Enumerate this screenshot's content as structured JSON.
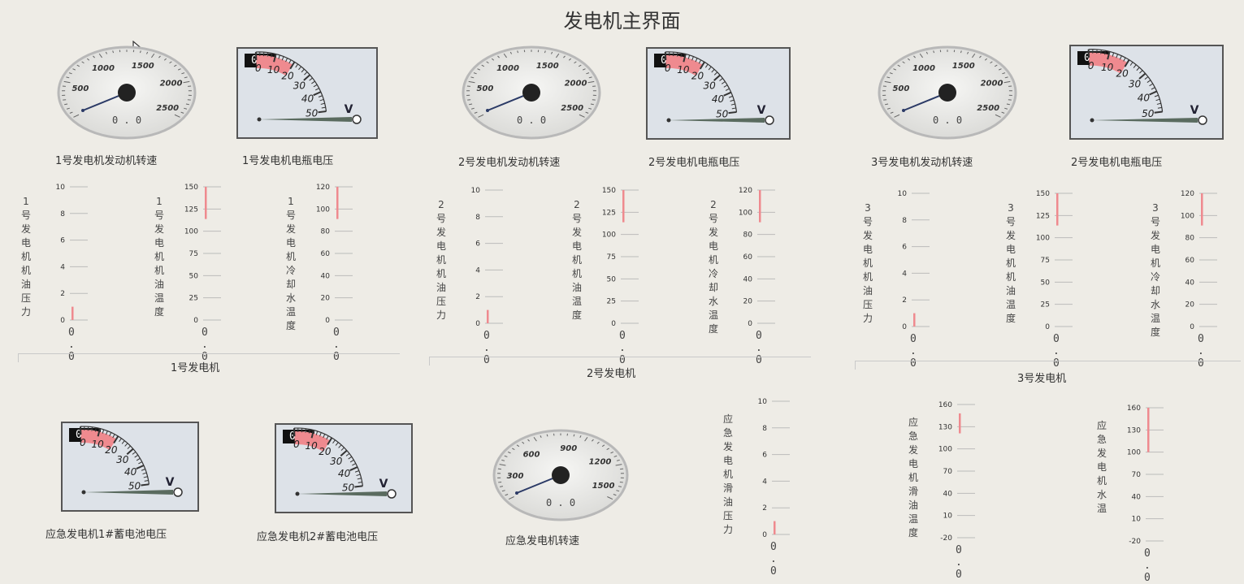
{
  "title": "发电机主界面",
  "rpm_gauges": [
    {
      "label": "1号发电机发动机转速",
      "value": "0.0",
      "ticks": [
        "500",
        "1000",
        "1500",
        "2000",
        "2500"
      ]
    },
    {
      "label": "2号发电机发动机转速",
      "value": "0.0",
      "ticks": [
        "500",
        "1000",
        "1500",
        "2000",
        "2500"
      ]
    },
    {
      "label": "3号发电机发动机转速",
      "value": "0.0",
      "ticks": [
        "500",
        "1000",
        "1500",
        "2000",
        "2500"
      ]
    }
  ],
  "voltage_gauges": [
    {
      "label": "1号发电机电瓶电压",
      "value": "0.0",
      "ticks": [
        "0",
        "10",
        "20",
        "30",
        "40",
        "50"
      ],
      "unit": "V"
    },
    {
      "label": "2号发电机电瓶电压",
      "value": "0.0",
      "ticks": [
        "0",
        "10",
        "20",
        "30",
        "40",
        "50"
      ],
      "unit": "V"
    },
    {
      "label": "2号发电机电瓶电压",
      "value": "0.0",
      "ticks": [
        "0",
        "10",
        "20",
        "30",
        "40",
        "50"
      ],
      "unit": "V"
    }
  ],
  "scales": [
    {
      "label": "1号发电机机油压力",
      "value": "0.0",
      "ticks": [
        "10",
        "8",
        "6",
        "4",
        "2",
        "0"
      ]
    },
    {
      "label": "1号发电机机油温度",
      "value": "0.0",
      "ticks": [
        "150",
        "125",
        "100",
        "75",
        "50",
        "25",
        "0"
      ]
    },
    {
      "label": "1号发电机冷却水温度",
      "value": "0.0",
      "ticks": [
        "120",
        "100",
        "80",
        "60",
        "40",
        "20",
        "0"
      ]
    },
    {
      "label": "2号发电机机油压力",
      "value": "0.0",
      "ticks": [
        "10",
        "8",
        "6",
        "4",
        "2",
        "0"
      ]
    },
    {
      "label": "2号发电机机油温度",
      "value": "0.0",
      "ticks": [
        "150",
        "125",
        "100",
        "75",
        "50",
        "25",
        "0"
      ]
    },
    {
      "label": "2号发电机冷却水温度",
      "value": "0.0",
      "ticks": [
        "120",
        "100",
        "80",
        "60",
        "40",
        "20",
        "0"
      ]
    },
    {
      "label": "3号发电机机油压力",
      "value": "0.0",
      "ticks": [
        "10",
        "8",
        "6",
        "4",
        "2",
        "0"
      ]
    },
    {
      "label": "3号发电机机油温度",
      "value": "0.0",
      "ticks": [
        "150",
        "125",
        "100",
        "75",
        "50",
        "25",
        "0"
      ]
    },
    {
      "label": "3号发电机冷却水温度",
      "value": "0.0",
      "ticks": [
        "120",
        "100",
        "80",
        "60",
        "40",
        "20",
        "0"
      ]
    }
  ],
  "sections": [
    "1号发电机",
    "2号发电机",
    "3号发电机"
  ],
  "emergency": {
    "battery1": {
      "label": "应急发电机1#蓄电池电压",
      "value": "0.0",
      "ticks": [
        "0",
        "10",
        "20",
        "30",
        "40",
        "50"
      ],
      "unit": "V"
    },
    "battery2": {
      "label": "应急发电机2#蓄电池电压",
      "value": "0.0",
      "ticks": [
        "0",
        "10",
        "20",
        "30",
        "40",
        "50"
      ],
      "unit": "V"
    },
    "rpm": {
      "label": "应急发电机转速",
      "value": "0.0",
      "ticks": [
        "300",
        "600",
        "900",
        "1200",
        "1500"
      ]
    },
    "oil_pressure": {
      "label": "应急发电机滑油压力",
      "value": "0.0",
      "ticks": [
        "10",
        "8",
        "6",
        "4",
        "2",
        "0"
      ]
    },
    "oil_temp": {
      "label": "应急发电机滑油温度",
      "value": "0.0",
      "ticks": [
        "160",
        "130",
        "100",
        "70",
        "40",
        "10",
        "-20"
      ]
    },
    "water_temp": {
      "label": "应急发电机水温",
      "value": "0.0",
      "ticks": [
        "160",
        "130",
        "100",
        "70",
        "40",
        "10",
        "-20"
      ]
    }
  },
  "colors": {
    "alarm": "#ef8a8f",
    "needle": "#2b3a66",
    "hub": "#222222"
  }
}
